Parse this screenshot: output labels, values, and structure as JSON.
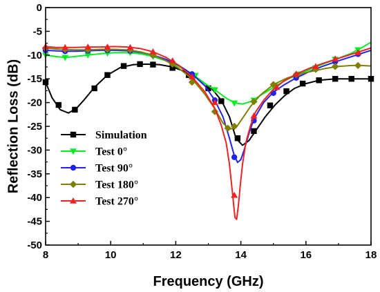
{
  "chart_data": {
    "type": "line",
    "title": "",
    "xlabel": "Frequency (GHz)",
    "ylabel": "Reflection Loss (dB)",
    "xlim": [
      8,
      18
    ],
    "ylim": [
      -50,
      0
    ],
    "xticks": [
      8,
      10,
      12,
      14,
      16,
      18
    ],
    "yticks": [
      0,
      -5,
      -10,
      -15,
      -20,
      -25,
      -30,
      -35,
      -40,
      -45,
      -50
    ],
    "grid": false,
    "legend_position": "lower-left",
    "series": [
      {
        "name": "Simulation",
        "color": "#000000",
        "marker": "square",
        "x": [
          8.0,
          8.2,
          8.45,
          8.7,
          8.95,
          9.2,
          9.5,
          9.9,
          10.3,
          10.7,
          11.1,
          11.5,
          11.9,
          12.3,
          12.7,
          13.1,
          13.4,
          13.65,
          13.85,
          14.05,
          14.25,
          14.45,
          14.75,
          15.05,
          15.35,
          15.65,
          16.0,
          16.4,
          16.9,
          17.3,
          17.7,
          18.0
        ],
        "y": [
          -15.7,
          -19.0,
          -21.5,
          -22.2,
          -21.2,
          -19.3,
          -16.8,
          -14.2,
          -12.6,
          -12.0,
          -11.9,
          -12.0,
          -12.5,
          -13.5,
          -15.0,
          -17.0,
          -19.5,
          -23.0,
          -27.5,
          -29.0,
          -28.0,
          -26.0,
          -23.0,
          -20.5,
          -18.5,
          -17.0,
          -16.0,
          -15.3,
          -15.0,
          -15.0,
          -15.0,
          -15.0
        ],
        "marker_x": [
          8.0,
          8.4,
          8.9,
          9.5,
          9.9,
          10.4,
          10.9,
          11.3,
          11.9,
          12.4,
          13.0,
          13.4,
          13.9,
          14.4,
          14.9,
          15.4,
          15.9,
          16.4,
          16.9,
          17.4,
          18.0
        ],
        "marker_y": [
          -15.7,
          -20.5,
          -21.5,
          -17.0,
          -14.2,
          -12.3,
          -11.9,
          -12.0,
          -12.7,
          -14.2,
          -17.0,
          -19.7,
          -27.5,
          -26.0,
          -20.6,
          -17.6,
          -16.0,
          -15.3,
          -15.0,
          -15.0,
          -15.0
        ]
      },
      {
        "name": "Test 0°",
        "color": "#00ee22",
        "marker": "triangle-down",
        "x": [
          8.0,
          8.3,
          8.6,
          8.9,
          9.3,
          9.7,
          10.1,
          10.5,
          10.9,
          11.3,
          11.7,
          12.1,
          12.5,
          12.9,
          13.3,
          13.6,
          13.85,
          14.05,
          14.3,
          14.6,
          15.0,
          15.4,
          15.8,
          16.2,
          16.6,
          17.0,
          17.4,
          17.7,
          18.0
        ],
        "y": [
          -10.0,
          -10.3,
          -10.5,
          -10.3,
          -10.0,
          -9.7,
          -9.5,
          -9.5,
          -9.7,
          -10.3,
          -11.2,
          -12.4,
          -14.0,
          -16.0,
          -17.8,
          -19.3,
          -20.1,
          -20.3,
          -19.8,
          -18.5,
          -16.8,
          -15.2,
          -14.0,
          -12.8,
          -11.7,
          -10.7,
          -9.6,
          -8.5,
          -7.3
        ],
        "marker_x": [
          8.0,
          8.6,
          9.3,
          9.9,
          10.6,
          11.3,
          11.9,
          12.6,
          13.2,
          13.8,
          14.4,
          15.1,
          15.8,
          16.3,
          16.9,
          17.6
        ],
        "marker_y": [
          -10.0,
          -10.5,
          -10.0,
          -9.6,
          -9.5,
          -10.3,
          -11.9,
          -14.3,
          -17.3,
          -20.1,
          -19.5,
          -16.5,
          -14.0,
          -12.7,
          -10.9,
          -8.9
        ]
      },
      {
        "name": "Test 90°",
        "color": "#2222ee",
        "marker": "circle",
        "x": [
          8.0,
          8.3,
          8.6,
          8.9,
          9.3,
          9.7,
          10.1,
          10.5,
          10.9,
          11.3,
          11.7,
          12.1,
          12.5,
          12.9,
          13.2,
          13.45,
          13.65,
          13.8,
          13.9,
          14.0,
          14.1,
          14.25,
          14.4,
          14.7,
          15.0,
          15.3,
          15.7,
          16.1,
          16.5,
          17.0,
          17.5,
          18.0
        ],
        "y": [
          -9.0,
          -9.1,
          -9.2,
          -9.2,
          -9.1,
          -9.0,
          -9.0,
          -9.1,
          -9.4,
          -10.0,
          -10.9,
          -12.2,
          -14.0,
          -16.5,
          -19.5,
          -23.0,
          -27.5,
          -31.2,
          -32.6,
          -32.0,
          -30.0,
          -26.5,
          -23.5,
          -20.0,
          -17.8,
          -16.4,
          -14.8,
          -13.5,
          -12.4,
          -11.2,
          -10.1,
          -9.0
        ],
        "marker_x": [
          8.0,
          8.6,
          9.3,
          9.9,
          10.6,
          11.3,
          11.9,
          12.5,
          13.2,
          13.8,
          14.4,
          15.0,
          15.7,
          16.3,
          16.9,
          17.6
        ],
        "marker_y": [
          -9.0,
          -9.2,
          -9.1,
          -9.0,
          -9.1,
          -10.0,
          -11.6,
          -14.0,
          -19.5,
          -31.5,
          -23.8,
          -18.0,
          -14.8,
          -12.9,
          -11.4,
          -9.8
        ]
      },
      {
        "name": "Test 180°",
        "color": "#808000",
        "marker": "diamond",
        "x": [
          8.0,
          8.3,
          8.6,
          8.9,
          9.3,
          9.7,
          10.1,
          10.5,
          10.9,
          11.3,
          11.7,
          12.1,
          12.5,
          12.9,
          13.2,
          13.45,
          13.65,
          13.85,
          14.05,
          14.3,
          14.6,
          15.0,
          15.4,
          15.8,
          16.2,
          16.6,
          17.0,
          17.4,
          17.7,
          18.0
        ],
        "y": [
          -8.5,
          -8.7,
          -8.8,
          -8.9,
          -8.9,
          -8.8,
          -8.8,
          -8.9,
          -9.3,
          -10.0,
          -11.2,
          -12.8,
          -15.0,
          -18.3,
          -21.3,
          -24.3,
          -25.6,
          -25.3,
          -23.3,
          -20.8,
          -18.4,
          -16.2,
          -14.9,
          -14.0,
          -13.4,
          -12.8,
          -12.4,
          -12.2,
          -12.2,
          -12.3
        ],
        "marker_x": [
          8.0,
          8.6,
          9.3,
          9.9,
          10.6,
          11.3,
          11.9,
          12.5,
          13.2,
          13.6,
          13.8,
          14.4,
          15.0,
          15.7,
          16.3,
          16.9,
          17.6
        ],
        "marker_y": [
          -8.5,
          -8.8,
          -8.9,
          -8.8,
          -8.9,
          -10.0,
          -11.9,
          -15.7,
          -21.9,
          -25.4,
          -25.0,
          -19.8,
          -16.2,
          -14.1,
          -13.0,
          -12.4,
          -12.2
        ]
      },
      {
        "name": "Test 270°",
        "color": "#ee2222",
        "marker": "triangle-up",
        "x": [
          8.0,
          8.3,
          8.6,
          8.9,
          9.3,
          9.7,
          10.1,
          10.5,
          10.9,
          11.3,
          11.7,
          12.1,
          12.5,
          12.9,
          13.2,
          13.4,
          13.55,
          13.65,
          13.75,
          13.82,
          13.87,
          13.92,
          13.98,
          14.05,
          14.15,
          14.3,
          14.45,
          14.7,
          15.0,
          15.3,
          15.7,
          16.1,
          16.5,
          17.0,
          17.5,
          18.0
        ],
        "y": [
          -8.2,
          -8.4,
          -8.4,
          -8.4,
          -8.3,
          -8.3,
          -8.2,
          -8.3,
          -8.6,
          -9.3,
          -10.5,
          -12.2,
          -14.6,
          -17.8,
          -21.2,
          -24.8,
          -28.5,
          -33.0,
          -39.5,
          -44.2,
          -44.6,
          -42.0,
          -37.5,
          -33.0,
          -28.5,
          -24.8,
          -22.0,
          -19.5,
          -17.2,
          -15.6,
          -14.0,
          -12.8,
          -11.8,
          -10.7,
          -9.6,
          -8.5
        ],
        "marker_x": [
          8.0,
          8.6,
          9.3,
          9.9,
          10.6,
          11.3,
          11.9,
          12.5,
          13.2,
          13.8,
          14.4,
          15.1,
          15.7,
          16.3,
          16.9,
          17.6
        ],
        "marker_y": [
          -8.2,
          -8.4,
          -8.3,
          -8.3,
          -8.4,
          -9.3,
          -11.2,
          -14.6,
          -20.0,
          -39.5,
          -22.8,
          -16.8,
          -14.0,
          -12.4,
          -10.8,
          -9.5
        ]
      }
    ]
  }
}
